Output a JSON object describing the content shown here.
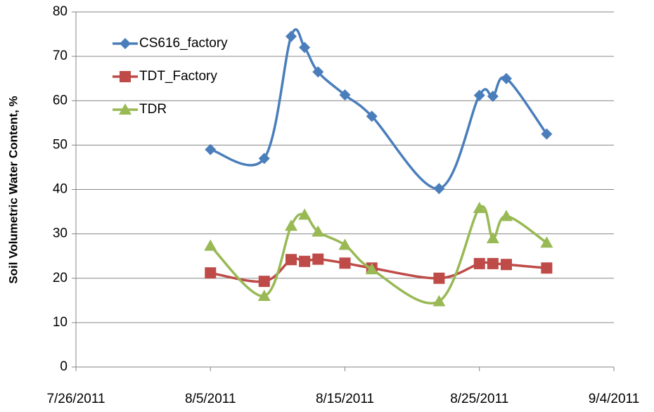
{
  "chart_data": {
    "type": "line",
    "y_label": "Soil Volumetric Water Content, %",
    "x": [
      "2011-08-05",
      "2011-08-09",
      "2011-08-11",
      "2011-08-12",
      "2011-08-13",
      "2011-08-15",
      "2011-08-17",
      "2011-08-22",
      "2011-08-25",
      "2011-08-26",
      "2011-08-27",
      "2011-08-30"
    ],
    "series": [
      {
        "name": "CS616_factory",
        "color": "#4a7ebb",
        "marker": "diamond",
        "values": [
          49,
          47,
          74.5,
          72,
          66.5,
          61.3,
          56.5,
          40.2,
          61.2,
          61,
          65,
          52.5
        ]
      },
      {
        "name": "TDT_Factory",
        "color": "#be4b48",
        "marker": "square",
        "values": [
          21.2,
          19.3,
          24.2,
          23.8,
          24.3,
          23.4,
          22.3,
          20,
          23.3,
          23.3,
          23.1,
          22.3
        ]
      },
      {
        "name": "TDR",
        "color": "#98b954",
        "marker": "triangle",
        "values": [
          27.3,
          16,
          31.8,
          34.3,
          30.5,
          27.5,
          22,
          14.8,
          35.8,
          29,
          34,
          28
        ]
      }
    ],
    "xlim": [
      "2011-07-26",
      "2011-09-04"
    ],
    "xticks": [
      {
        "value": "2011-07-26",
        "label": "7/26/2011"
      },
      {
        "value": "2011-08-05",
        "label": "8/5/2011"
      },
      {
        "value": "2011-08-15",
        "label": "8/15/2011"
      },
      {
        "value": "2011-08-25",
        "label": "8/25/2011"
      },
      {
        "value": "2011-09-04",
        "label": "9/4/2011"
      }
    ],
    "ylim": [
      0,
      80
    ],
    "yticks": [
      0,
      10,
      20,
      30,
      40,
      50,
      60,
      70,
      80
    ],
    "grid": true,
    "smooth": true,
    "legend": "upper left"
  }
}
